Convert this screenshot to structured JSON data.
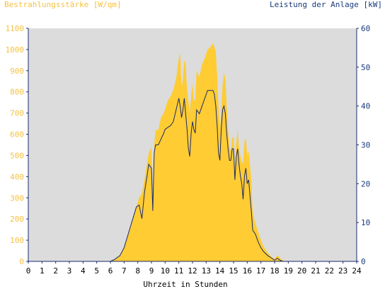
{
  "chart_data": {
    "type": "area",
    "title_left": "Bestrahlungsstärke [W/qm]",
    "title_right": "Leistung der Anlage [kW]",
    "xlabel": "Uhrzeit in Stunden",
    "xlim": [
      0,
      24
    ],
    "x_ticks": [
      "0",
      "1",
      "2",
      "3",
      "4",
      "5",
      "6",
      "7",
      "8",
      "9",
      "10",
      "11",
      "12",
      "13",
      "14",
      "15",
      "16",
      "17",
      "18",
      "19",
      "20",
      "21",
      "22",
      "23",
      "24"
    ],
    "ylim_left": [
      0,
      1100
    ],
    "y_ticks_left": [
      "0",
      "100",
      "200",
      "300",
      "400",
      "500",
      "600",
      "700",
      "800",
      "900",
      "1000",
      "1100"
    ],
    "ylim_right": [
      0,
      60
    ],
    "y_ticks_right": [
      "0",
      "10",
      "20",
      "30",
      "40",
      "50",
      "60"
    ],
    "grid": false,
    "colors": {
      "plot_bg": "#dcdcdc",
      "irradiance_fill": "#ffcc33",
      "power_line": "#1a2a6c",
      "left_axis_text": "#f5c242",
      "right_axis_text": "#1a3a7a",
      "axis_line": "#1a2a6c"
    },
    "series": [
      {
        "name": "Bestrahlungsstärke [W/qm]",
        "axis": "left",
        "style": "area",
        "x": [
          6.0,
          6.3,
          6.7,
          7.0,
          7.3,
          7.6,
          7.9,
          8.1,
          8.3,
          8.5,
          8.7,
          8.8,
          9.0,
          9.1,
          9.2,
          9.3,
          9.5,
          9.7,
          9.9,
          10.0,
          10.2,
          10.4,
          10.6,
          10.8,
          11.0,
          11.1,
          11.2,
          11.3,
          11.4,
          11.5,
          11.6,
          11.7,
          11.8,
          11.9,
          12.0,
          12.1,
          12.2,
          12.3,
          12.5,
          12.7,
          12.9,
          13.1,
          13.3,
          13.5,
          13.6,
          13.7,
          13.8,
          13.9,
          14.0,
          14.1,
          14.2,
          14.3,
          14.4,
          14.5,
          14.6,
          14.7,
          14.8,
          14.9,
          15.0,
          15.1,
          15.2,
          15.3,
          15.4,
          15.5,
          15.6,
          15.7,
          15.8,
          15.9,
          16.0,
          16.1,
          16.2,
          16.3,
          16.4,
          16.6,
          16.8,
          17.0,
          17.2,
          17.5,
          17.8,
          18.0,
          18.2,
          18.4,
          18.6,
          18.8,
          19.0
        ],
        "values": [
          0,
          10,
          30,
          70,
          130,
          200,
          260,
          300,
          320,
          390,
          470,
          510,
          540,
          300,
          550,
          620,
          620,
          680,
          700,
          720,
          760,
          780,
          810,
          860,
          960,
          980,
          820,
          860,
          950,
          930,
          810,
          760,
          700,
          780,
          840,
          760,
          760,
          900,
          870,
          930,
          960,
          1000,
          1010,
          1030,
          1010,
          990,
          880,
          740,
          620,
          720,
          830,
          890,
          860,
          740,
          620,
          540,
          520,
          580,
          590,
          440,
          560,
          620,
          540,
          500,
          470,
          460,
          570,
          580,
          500,
          520,
          460,
          380,
          230,
          180,
          140,
          100,
          70,
          40,
          20,
          10,
          30,
          15,
          5,
          0,
          0
        ]
      },
      {
        "name": "Leistung der Anlage [kW]",
        "axis": "right",
        "style": "line",
        "x": [
          6.0,
          6.3,
          6.7,
          7.0,
          7.3,
          7.6,
          7.9,
          8.1,
          8.3,
          8.5,
          8.7,
          8.8,
          9.0,
          9.1,
          9.2,
          9.3,
          9.5,
          9.7,
          9.9,
          10.0,
          10.2,
          10.4,
          10.6,
          10.8,
          11.0,
          11.1,
          11.2,
          11.3,
          11.4,
          11.5,
          11.6,
          11.7,
          11.8,
          11.9,
          12.0,
          12.1,
          12.2,
          12.3,
          12.5,
          12.7,
          12.9,
          13.1,
          13.3,
          13.5,
          13.6,
          13.7,
          13.8,
          13.9,
          14.0,
          14.1,
          14.2,
          14.3,
          14.4,
          14.5,
          14.6,
          14.7,
          14.8,
          14.9,
          15.0,
          15.1,
          15.2,
          15.3,
          15.4,
          15.5,
          15.6,
          15.7,
          15.8,
          15.9,
          16.0,
          16.1,
          16.2,
          16.3,
          16.4,
          16.6,
          16.8,
          17.0,
          17.2,
          17.5,
          17.8,
          18.0,
          18.2,
          18.4,
          18.6,
          18.8,
          19.0
        ],
        "values": [
          0,
          0.5,
          1.5,
          3.5,
          7,
          10.5,
          14,
          14.5,
          11,
          18,
          22.5,
          25,
          24,
          13,
          28,
          30,
          30,
          31.5,
          33,
          34,
          34.5,
          35,
          36,
          39,
          42,
          40,
          37,
          39,
          42,
          38,
          34,
          29,
          27,
          33,
          36,
          34,
          33,
          39,
          38,
          40,
          42,
          44,
          44,
          44,
          43,
          40,
          35,
          28,
          26,
          34,
          39,
          40,
          38,
          33,
          29,
          26,
          26,
          29,
          29,
          21,
          27,
          29,
          25,
          22,
          20,
          16,
          22,
          24,
          20,
          21,
          17,
          13,
          8,
          7,
          5,
          3.5,
          2.5,
          1.5,
          0.8,
          0.3,
          0.8,
          0.3,
          0,
          0,
          0
        ]
      }
    ]
  }
}
